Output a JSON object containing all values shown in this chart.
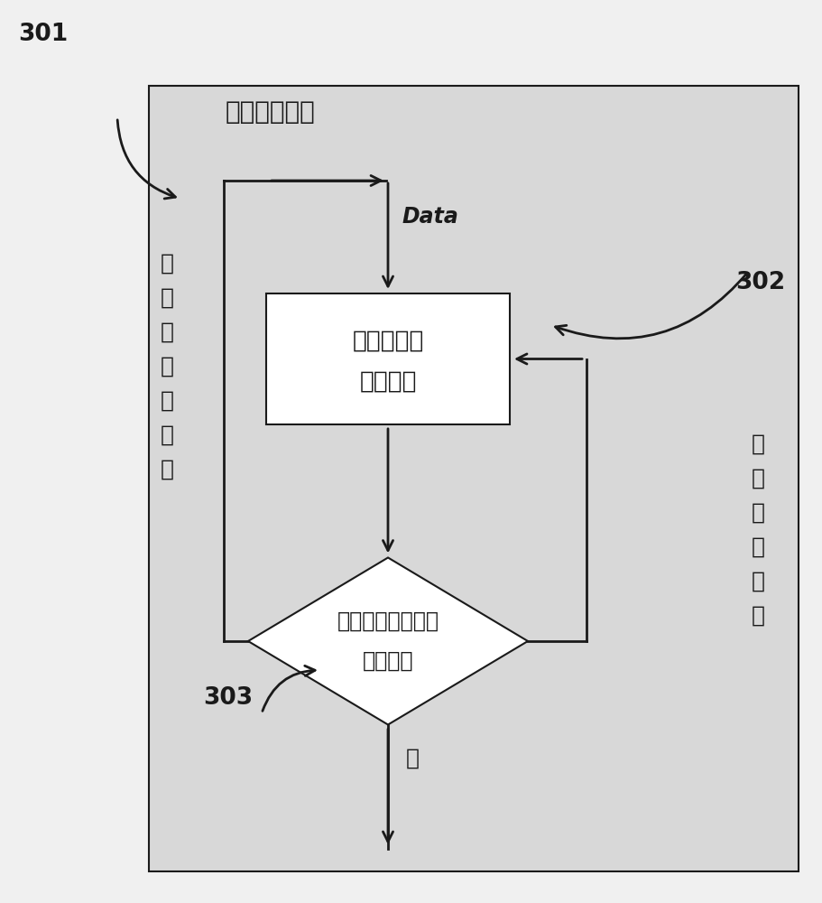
{
  "bg_color": "#f0f0f0",
  "panel_color": "#d8d8d8",
  "inner_box_fill": "#ffffff",
  "line_color": "#1a1a1a",
  "text_color": "#1a1a1a",
  "label_301": "301",
  "label_302": "302",
  "label_303": "303",
  "title_text": "干扰攻击判断",
  "box1_line1": "接收需要判",
  "box1_line2": "断的数据",
  "diamond_line1": "利用函数判断是否",
  "diamond_line2": "收到攻击",
  "data_label": "Data",
  "no_left_chars": [
    "否",
    "，",
    "没",
    "有",
    "新",
    "数",
    "据"
  ],
  "no_right_chars": [
    "否",
    "，",
    "有",
    "新",
    "数",
    "据"
  ],
  "yes_label": "是",
  "font_size_title": 20,
  "font_size_box": 19,
  "font_size_diamond": 17,
  "font_size_label": 19,
  "font_size_side": 18,
  "font_size_data": 17
}
